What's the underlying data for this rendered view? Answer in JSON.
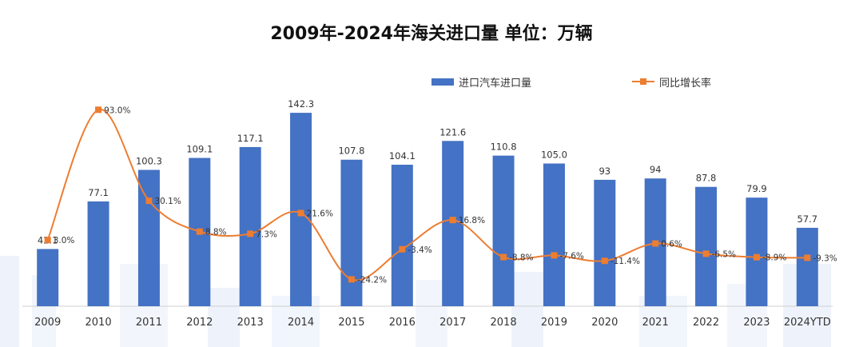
{
  "chart_data": {
    "type": "bar",
    "title": "2009年-2024年海关进口量  单位：万辆",
    "categories": [
      "2009",
      "2010",
      "2011",
      "2012",
      "2013",
      "2014",
      "2015",
      "2016",
      "2017",
      "2018",
      "2019",
      "2020",
      "2021",
      "2022",
      "2023",
      "2024YTD"
    ],
    "series": [
      {
        "name": "进口汽车进口量",
        "type": "bar",
        "color": "#4472C4",
        "values": [
          42.1,
          77.1,
          100.3,
          109.1,
          117.1,
          142.3,
          107.8,
          104.1,
          121.6,
          110.8,
          105.0,
          93,
          94,
          87.8,
          79.9,
          57.7
        ],
        "labels": [
          "42.1",
          "77.1",
          "100.3",
          "109.1",
          "117.1",
          "142.3",
          "107.8",
          "104.1",
          "121.6",
          "110.8",
          "105.0",
          "93",
          "94",
          "87.8",
          "79.9",
          "57.7"
        ]
      },
      {
        "name": "同比增长率",
        "type": "line",
        "smooth": true,
        "color": "#ED7D31",
        "values": [
          3.0,
          93.0,
          30.1,
          8.8,
          7.3,
          21.6,
          -24.2,
          -3.4,
          16.8,
          -8.8,
          -7.6,
          -11.4,
          0.6,
          -6.5,
          -8.9,
          -9.3
        ],
        "labels": [
          "3.0%",
          "93.0%",
          "30.1%",
          "8.8%",
          "7.3%",
          "21.6%",
          "-24.2%",
          "-3.4%",
          "16.8%",
          "-8.8%",
          "-7.6%",
          "-11.4%",
          "0.6%",
          "-6.5%",
          "-8.9%",
          "-9.3%"
        ]
      }
    ],
    "legend_position": "top-right",
    "grid": false
  }
}
